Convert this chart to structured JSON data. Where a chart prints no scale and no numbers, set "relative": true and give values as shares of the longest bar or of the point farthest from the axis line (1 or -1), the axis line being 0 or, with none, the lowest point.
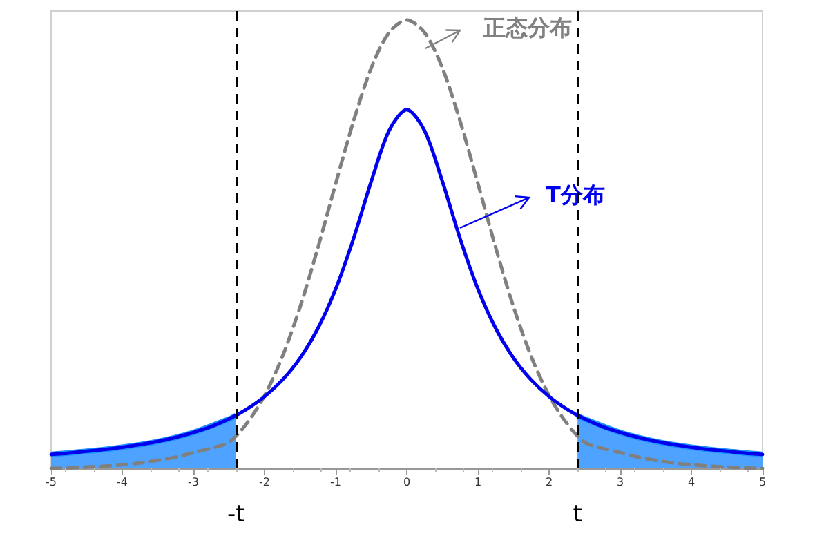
{
  "chart_data": {
    "type": "line",
    "relative": true,
    "marker": "none",
    "legend": "top right",
    "xlim": [
      -5,
      5
    ],
    "xticks": [
      -5,
      -4,
      -3,
      -2,
      -1,
      0,
      1,
      2,
      3,
      4,
      5
    ],
    "series": [
      {
        "name": "正态分布",
        "type": "line",
        "line_style": "dashed",
        "color": "#808080",
        "x": [
          -5,
          -4.75,
          -4.5,
          -4.25,
          -4,
          -3.75,
          -3.5,
          -3.25,
          -3,
          -2.75,
          -2.5,
          -2.25,
          -2,
          -1.75,
          -1.5,
          -1.25,
          -1,
          -0.75,
          -0.5,
          -0.25,
          0,
          0.25,
          0.5,
          0.75,
          1,
          1.25,
          1.5,
          1.75,
          2,
          2.25,
          2.5,
          2.75,
          3,
          3.25,
          3.5,
          3.75,
          4,
          4.25,
          4.5,
          4.75,
          5
        ],
        "values": [
          0,
          0.001,
          0.003,
          0.005,
          0.008,
          0.012,
          0.018,
          0.025,
          0.035,
          0.045,
          0.058,
          0.1,
          0.162,
          0.249,
          0.36,
          0.492,
          0.635,
          0.774,
          0.893,
          0.972,
          1,
          0.972,
          0.893,
          0.774,
          0.635,
          0.492,
          0.36,
          0.249,
          0.162,
          0.1,
          0.058,
          0.045,
          0.035,
          0.025,
          0.018,
          0.012,
          0.008,
          0.005,
          0.003,
          0.001,
          0
        ]
      },
      {
        "name": "T分布",
        "type": "line",
        "line_style": "solid",
        "color": "#0000ee",
        "x": [
          -5,
          -4.75,
          -4.5,
          -4.25,
          -4,
          -3.75,
          -3.5,
          -3.25,
          -3,
          -2.75,
          -2.5,
          -2.25,
          -2,
          -1.75,
          -1.5,
          -1.25,
          -1,
          -0.75,
          -0.5,
          -0.25,
          0,
          0.25,
          0.5,
          0.75,
          1,
          1.25,
          1.5,
          1.75,
          2,
          2.25,
          2.5,
          2.75,
          3,
          3.25,
          3.5,
          3.75,
          4,
          4.25,
          4.5,
          4.75,
          5
        ],
        "values": [
          0.031,
          0.034,
          0.038,
          0.042,
          0.047,
          0.053,
          0.06,
          0.069,
          0.08,
          0.093,
          0.11,
          0.132,
          0.16,
          0.197,
          0.246,
          0.312,
          0.4,
          0.512,
          0.64,
          0.753,
          0.8,
          0.753,
          0.64,
          0.512,
          0.4,
          0.312,
          0.246,
          0.197,
          0.16,
          0.132,
          0.11,
          0.093,
          0.08,
          0.069,
          0.06,
          0.053,
          0.047,
          0.042,
          0.038,
          0.034,
          0.031
        ]
      },
      {
        "type": "area",
        "color": "#4da3ff",
        "x": [
          -5,
          -4.5,
          -4,
          -3.5,
          -3,
          -2.5,
          -2.4
        ],
        "values": [
          0.031,
          0.038,
          0.047,
          0.06,
          0.08,
          0.11,
          0.118
        ]
      },
      {
        "type": "area",
        "color": "#4da3ff",
        "x": [
          2.4,
          2.5,
          3,
          3.5,
          4,
          4.5,
          5
        ],
        "values": [
          0.118,
          0.11,
          0.08,
          0.06,
          0.047,
          0.038,
          0.031
        ]
      }
    ],
    "ref_lines": [
      {
        "axis": "x",
        "value": -2.4,
        "label": "-t",
        "line_style": "dashed",
        "color": "#000000"
      },
      {
        "axis": "x",
        "value": 2.4,
        "label": "t",
        "line_style": "dashed",
        "color": "#000000"
      }
    ]
  }
}
